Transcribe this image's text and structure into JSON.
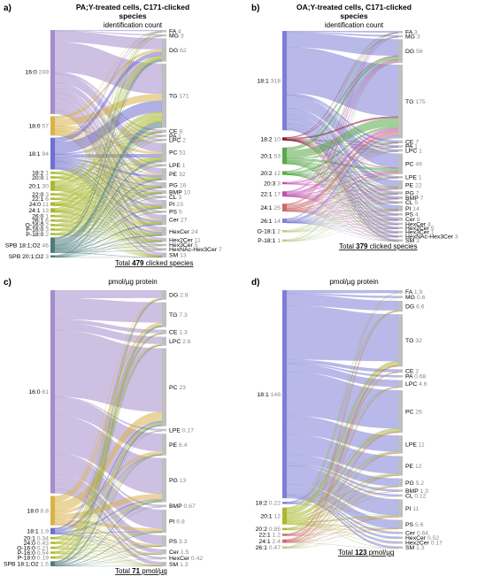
{
  "colors": {
    "pa_16_0": "#a58ccc",
    "pa_18_0": "#d9b24a",
    "pa_18_1": "#6f6fcf",
    "olive": "#a9b930",
    "gray_node": "#bfbfbf",
    "teal": "#4f7b7b",
    "oa_main": "#7d7fd6",
    "green": "#5aa84a",
    "magenta": "#c24fb0",
    "red": "#c96a6a",
    "dark_red": "#8a1a3a",
    "lightgreen": "#b9c98a",
    "label_gray": "#888888"
  },
  "panels": [
    {
      "tag": "a)",
      "title_line1": "PA;Y-treated cells, C171-clicked",
      "title_line2": "species",
      "subtitle": "identification count",
      "footer_pre": "Total ",
      "footer_bold": "479",
      "footer_post": " clicked species"
    },
    {
      "tag": "b)",
      "title_line1": "OA;Y-treated cells, C171-clicked",
      "title_line2": "species",
      "subtitle": "identification count",
      "footer_pre": "Total ",
      "footer_bold": "379",
      "footer_post": " clicked species"
    },
    {
      "tag": "c)",
      "title_line1": "",
      "title_line2": "",
      "subtitle": "pmol/µg protein",
      "footer_pre": "Total ",
      "footer_bold": "71",
      "footer_post": " pmol/µg"
    },
    {
      "tag": "d)",
      "title_line1": "",
      "title_line2": "",
      "subtitle": "pmol/µg protein",
      "footer_pre": "Total ",
      "footer_bold": "123",
      "footer_post": " pmol/µg"
    }
  ],
  "chart_data": [
    {
      "type": "sankey",
      "panel": "a)",
      "title": "PA;Y-treated cells, C171-clicked species",
      "subtitle": "identification count",
      "total": 479,
      "sources": [
        {
          "name": "16:0",
          "value": 249
        },
        {
          "name": "18:0",
          "value": 57
        },
        {
          "name": "18:1",
          "value": 94
        },
        {
          "name": "18:2",
          "value": 1
        },
        {
          "name": "20:0",
          "value": 1
        },
        {
          "name": "20:1",
          "value": 30
        },
        {
          "name": "22:0",
          "value": 3
        },
        {
          "name": "22:1",
          "value": 6
        },
        {
          "name": "24:0",
          "value": 11
        },
        {
          "name": "24:1",
          "value": 13
        },
        {
          "name": "26:0",
          "value": 1
        },
        {
          "name": "26:1",
          "value": 6
        },
        {
          "name": "O-16:0",
          "value": 2
        },
        {
          "name": "P-16:0",
          "value": 3
        },
        {
          "name": "P-18:0",
          "value": 2
        },
        {
          "name": "SPB 18:1;O2",
          "value": 46
        },
        {
          "name": "SPB 20:1;O2",
          "value": 3
        }
      ],
      "targets": [
        {
          "name": "FA",
          "value": 4
        },
        {
          "name": "MG",
          "value": 3
        },
        {
          "name": "DG",
          "value": 62
        },
        {
          "name": "TG",
          "value": 171
        },
        {
          "name": "CE",
          "value": 8
        },
        {
          "name": "PA",
          "value": 1
        },
        {
          "name": "LPC",
          "value": 2
        },
        {
          "name": "PC",
          "value": 51
        },
        {
          "name": "LPE",
          "value": 1
        },
        {
          "name": "PE",
          "value": 32
        },
        {
          "name": "PG",
          "value": 16
        },
        {
          "name": "BMP",
          "value": 10
        },
        {
          "name": "CL",
          "value": 3
        },
        {
          "name": "PI",
          "value": 23
        },
        {
          "name": "PS",
          "value": 5
        },
        {
          "name": "Cer",
          "value": 27
        },
        {
          "name": "HexCer",
          "value": 24
        },
        {
          "name": "Hex2Cer",
          "value": 11
        },
        {
          "name": "Hex3Cer",
          "value": 5
        },
        {
          "name": "HexNAc-Hex3Cer",
          "value": 7
        },
        {
          "name": "SM",
          "value": 13
        }
      ]
    },
    {
      "type": "sankey",
      "panel": "b)",
      "title": "OA;Y-treated cells, C171-clicked species",
      "subtitle": "identification count",
      "total": 379,
      "sources": [
        {
          "name": "18:1",
          "value": 318
        },
        {
          "name": "18:2",
          "value": 10
        },
        {
          "name": "20:1",
          "value": 53
        },
        {
          "name": "20:2",
          "value": 12
        },
        {
          "name": "20:3",
          "value": 3
        },
        {
          "name": "22:1",
          "value": 17
        },
        {
          "name": "24:1",
          "value": 25
        },
        {
          "name": "26:1",
          "value": 14
        },
        {
          "name": "O-18:1",
          "value": 2
        },
        {
          "name": "P-18:1",
          "value": 1
        }
      ],
      "targets": [
        {
          "name": "FA",
          "value": 3
        },
        {
          "name": "MG",
          "value": 3
        },
        {
          "name": "DG",
          "value": 56
        },
        {
          "name": "TG",
          "value": 175
        },
        {
          "name": "CE",
          "value": 7
        },
        {
          "name": "PA",
          "value": 1
        },
        {
          "name": "LPC",
          "value": 1
        },
        {
          "name": "PC",
          "value": 49
        },
        {
          "name": "LPE",
          "value": 1
        },
        {
          "name": "PE",
          "value": 22
        },
        {
          "name": "PG",
          "value": 7
        },
        {
          "name": "BMP",
          "value": 7
        },
        {
          "name": "CL",
          "value": 5
        },
        {
          "name": "PI",
          "value": 14
        },
        {
          "name": "PS",
          "value": 4
        },
        {
          "name": "Cer",
          "value": 8
        },
        {
          "name": "HexCer",
          "value": 4
        },
        {
          "name": "Hex2Cer",
          "value": 5
        },
        {
          "name": "Hex3Cer",
          "value": 1
        },
        {
          "name": "HexNAc-Hex3Cer",
          "value": 3
        },
        {
          "name": "SM",
          "value": 3
        }
      ]
    },
    {
      "type": "sankey",
      "panel": "c)",
      "subtitle": "pmol/µg protein",
      "total": 71,
      "sources": [
        {
          "name": "16:0",
          "value": 61
        },
        {
          "name": "18:0",
          "value": 8.8
        },
        {
          "name": "18:1",
          "value": 1.9
        },
        {
          "name": "20:1",
          "value": 0.34
        },
        {
          "name": "24:0",
          "value": 0.43
        },
        {
          "name": "O-16:0",
          "value": 0.21
        },
        {
          "name": "P-16:0",
          "value": 0.54
        },
        {
          "name": "P-18:0",
          "value": 0.19
        },
        {
          "name": "SPB 18:1;O2",
          "value": 1.5
        }
      ],
      "targets": [
        {
          "name": "DG",
          "value": 2.8
        },
        {
          "name": "TG",
          "value": 7.3
        },
        {
          "name": "CE",
          "value": 1.3
        },
        {
          "name": "LPC",
          "value": 2.6
        },
        {
          "name": "PC",
          "value": 23
        },
        {
          "name": "LPE",
          "value": 0.17
        },
        {
          "name": "PE",
          "value": 6.4
        },
        {
          "name": "PG",
          "value": 13
        },
        {
          "name": "BMP",
          "value": 0.67
        },
        {
          "name": "PI",
          "value": 6.8
        },
        {
          "name": "PS",
          "value": 3.3
        },
        {
          "name": "Cer",
          "value": 1.5
        },
        {
          "name": "HexCer",
          "value": 0.42
        },
        {
          "name": "SM",
          "value": 1.3
        }
      ]
    },
    {
      "type": "sankey",
      "panel": "d)",
      "subtitle": "pmol/µg protein",
      "total": 123,
      "sources": [
        {
          "name": "18:1",
          "value": 148
        },
        {
          "name": "18:2",
          "value": 0.22
        },
        {
          "name": "20:1",
          "value": 12
        },
        {
          "name": "20:2",
          "value": 0.85
        },
        {
          "name": "22:1",
          "value": 1.2
        },
        {
          "name": "24:1",
          "value": 2.4
        },
        {
          "name": "26:1",
          "value": 0.47
        }
      ],
      "targets": [
        {
          "name": "FA",
          "value": 1.9
        },
        {
          "name": "MG",
          "value": 0.6
        },
        {
          "name": "DG",
          "value": 6.6
        },
        {
          "name": "TG",
          "value": 32
        },
        {
          "name": "CE",
          "value": 2
        },
        {
          "name": "PA",
          "value": 0.68
        },
        {
          "name": "LPC",
          "value": 4.6
        },
        {
          "name": "PC",
          "value": 26
        },
        {
          "name": "LPE",
          "value": 11
        },
        {
          "name": "PE",
          "value": 12
        },
        {
          "name": "PG",
          "value": 5.2
        },
        {
          "name": "BMP",
          "value": 1.3
        },
        {
          "name": "CL",
          "value": 0.12
        },
        {
          "name": "PI",
          "value": 11
        },
        {
          "name": "PS",
          "value": 5.6
        },
        {
          "name": "Cer",
          "value": 0.64
        },
        {
          "name": "HexCer",
          "value": 0.52
        },
        {
          "name": "Hex2Cer",
          "value": 0.17
        },
        {
          "name": "SM",
          "value": 1.3
        }
      ]
    }
  ]
}
